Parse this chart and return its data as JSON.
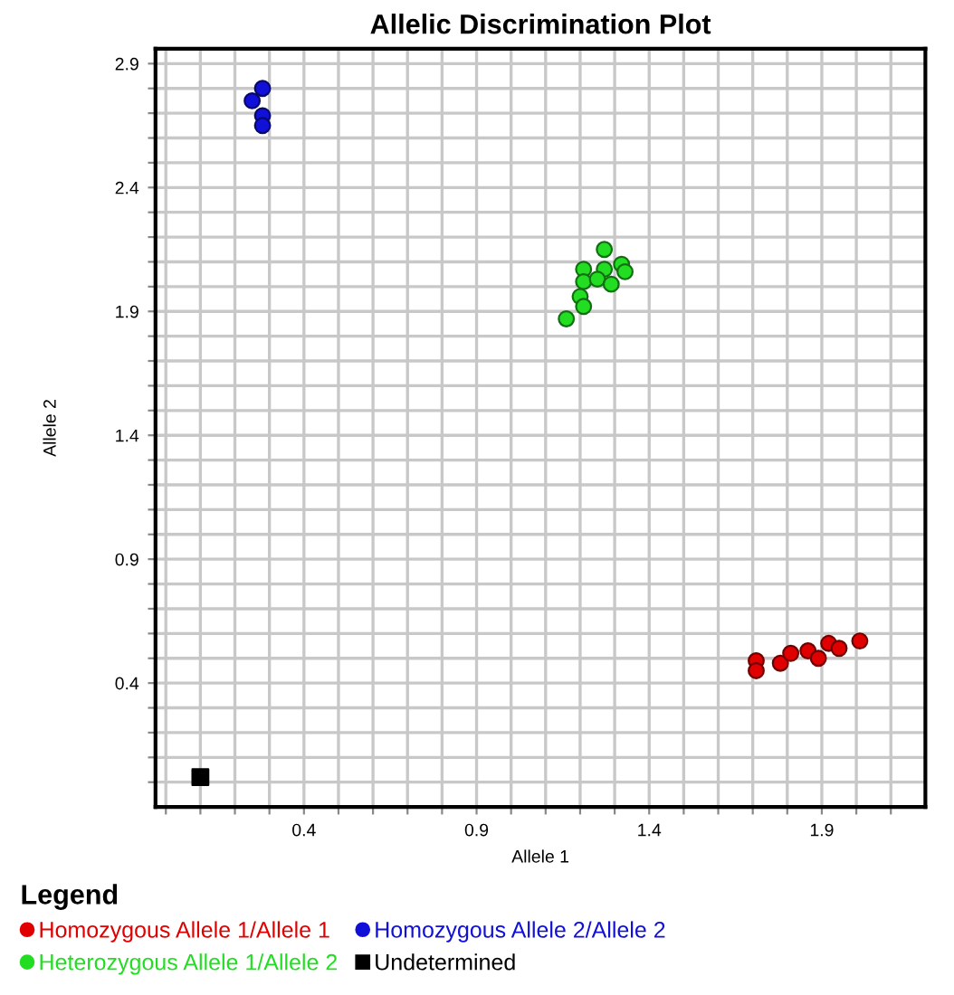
{
  "chart_data": {
    "type": "scatter",
    "title": "Allelic Discrimination Plot",
    "xlabel": "Allele 1",
    "ylabel": "Allele 2",
    "legend_title": "Legend",
    "series": [
      {
        "name": "Homozygous Allele 1/Allele 1",
        "color": "#e00000",
        "marker": "circle",
        "x": [
          1.71,
          1.71,
          1.78,
          1.81,
          1.86,
          1.89,
          1.92,
          1.95,
          2.01
        ],
        "values": [
          0.49,
          0.45,
          0.48,
          0.52,
          0.53,
          0.5,
          0.56,
          0.54,
          0.57
        ]
      },
      {
        "name": "Homozygous Allele 2/Allele 2",
        "color": "#1010d8",
        "marker": "circle",
        "x": [
          0.28,
          0.25,
          0.28,
          0.28
        ],
        "values": [
          2.8,
          2.75,
          2.69,
          2.65
        ]
      },
      {
        "name": "Heterozygous Allele 1/Allele 2",
        "color": "#22dd22",
        "marker": "circle",
        "x": [
          1.27,
          1.21,
          1.27,
          1.32,
          1.33,
          1.21,
          1.25,
          1.29,
          1.2,
          1.21,
          1.16
        ],
        "values": [
          2.15,
          2.07,
          2.07,
          2.09,
          2.06,
          2.02,
          2.03,
          2.01,
          1.96,
          1.92,
          1.87
        ]
      },
      {
        "name": "Undetermined",
        "color": "#000000",
        "marker": "square",
        "x": [
          0.1
        ],
        "values": [
          0.02
        ]
      }
    ],
    "xlim": [
      -0.03,
      2.2
    ],
    "ylim": [
      -0.1,
      2.96
    ],
    "xticks": [
      {
        "value": 0.0,
        "label": null
      },
      {
        "value": 0.1,
        "label": null
      },
      {
        "value": 0.2,
        "label": null
      },
      {
        "value": 0.3,
        "label": null
      },
      0.4,
      {
        "value": 0.5,
        "label": null
      },
      {
        "value": 0.6,
        "label": null
      },
      {
        "value": 0.7,
        "label": null
      },
      {
        "value": 0.8,
        "label": null
      },
      0.9,
      {
        "value": 1.0,
        "label": null
      },
      {
        "value": 1.1,
        "label": null
      },
      {
        "value": 1.2,
        "label": null
      },
      {
        "value": 1.3,
        "label": null
      },
      1.4,
      {
        "value": 1.5,
        "label": null
      },
      {
        "value": 1.6,
        "label": null
      },
      {
        "value": 1.7,
        "label": null
      },
      {
        "value": 1.8,
        "label": null
      },
      1.9,
      {
        "value": 2.0,
        "label": null
      },
      {
        "value": 2.1,
        "label": null
      }
    ],
    "yticks": [
      {
        "value": 0.0,
        "label": null
      },
      {
        "value": 0.1,
        "label": null
      },
      {
        "value": 0.2,
        "label": null
      },
      {
        "value": 0.3,
        "label": null
      },
      0.4,
      {
        "value": 0.5,
        "label": null
      },
      {
        "value": 0.6,
        "label": null
      },
      {
        "value": 0.7,
        "label": null
      },
      {
        "value": 0.8,
        "label": null
      },
      0.9,
      {
        "value": 1.0,
        "label": null
      },
      {
        "value": 1.1,
        "label": null
      },
      {
        "value": 1.2,
        "label": null
      },
      {
        "value": 1.3,
        "label": null
      },
      1.4,
      {
        "value": 1.5,
        "label": null
      },
      {
        "value": 1.6,
        "label": null
      },
      {
        "value": 1.7,
        "label": null
      },
      {
        "value": 1.8,
        "label": null
      },
      1.9,
      {
        "value": 2.0,
        "label": null
      },
      {
        "value": 2.1,
        "label": null
      },
      {
        "value": 2.2,
        "label": null
      },
      {
        "value": 2.3,
        "label": null
      },
      2.4,
      {
        "value": 2.5,
        "label": null
      },
      {
        "value": 2.6,
        "label": null
      },
      {
        "value": 2.7,
        "label": null
      },
      {
        "value": 2.8,
        "label": null
      },
      2.9
    ],
    "grid": true,
    "legend": "bottom"
  }
}
